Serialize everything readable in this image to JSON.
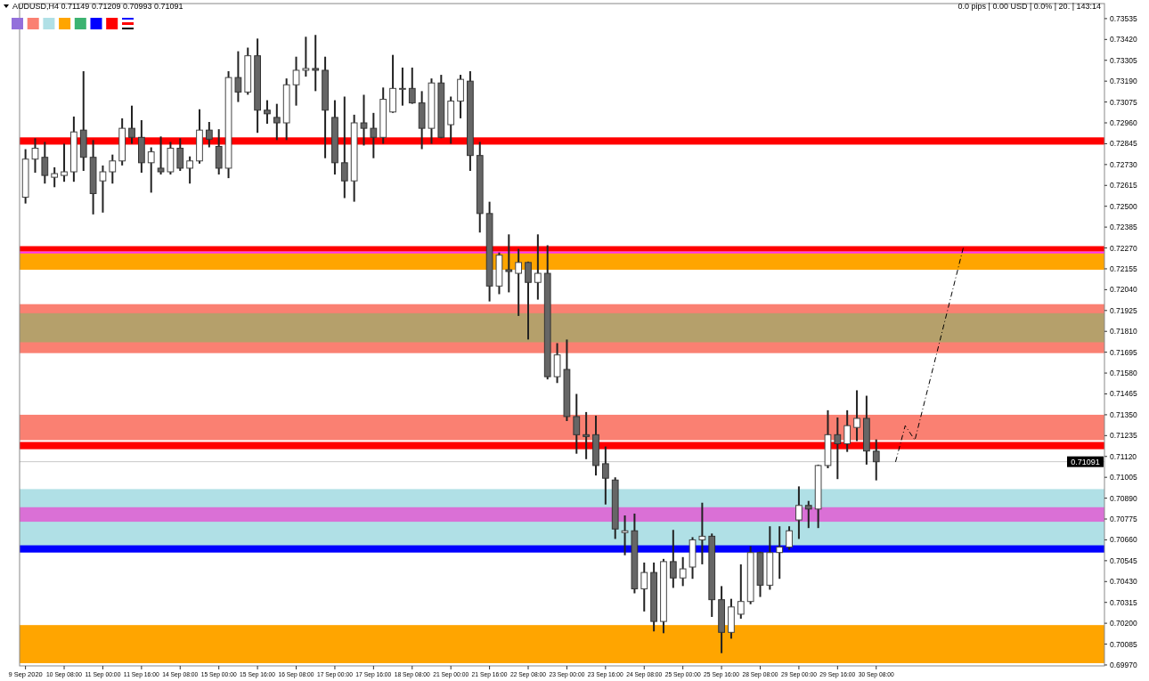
{
  "chart_data": {
    "type": "candlestick",
    "title": "AUDUSD,H4  0.71149 0.71209 0.70993 0.71091",
    "annotations": [
      "0.0 pips | 0.00 USD | 0.0% | 20. | 143:14"
    ],
    "categories": [
      "9 Sep 2020",
      null,
      null,
      null,
      "10 Sep 08:00",
      null,
      null,
      null,
      "11 Sep 00:00",
      null,
      null,
      null,
      "11 Sep 16:00",
      null,
      null,
      null,
      "14 Sep 08:00",
      null,
      null,
      null,
      "15 Sep 00:00",
      null,
      null,
      null,
      "15 Sep 16:00",
      null,
      null,
      null,
      "16 Sep 08:00",
      null,
      null,
      null,
      "17 Sep 00:00",
      null,
      null,
      null,
      "17 Sep 16:00",
      null,
      null,
      null,
      "18 Sep 08:00",
      null,
      null,
      null,
      "21 Sep 00:00",
      null,
      null,
      null,
      "21 Sep 16:00",
      null,
      null,
      null,
      "22 Sep 08:00",
      null,
      null,
      null,
      "23 Sep 00:00",
      null,
      null,
      null,
      "23 Sep 16:00",
      null,
      null,
      null,
      "24 Sep 08:00",
      null,
      null,
      null,
      "25 Sep 00:00",
      null,
      null,
      null,
      "25 Sep 16:00",
      null,
      null,
      null,
      "28 Sep 08:00",
      null,
      null,
      null,
      "29 Sep 00:00",
      null,
      null,
      null,
      "29 Sep 16:00",
      null,
      null,
      null,
      "30 Sep 08:00",
      null,
      null,
      null,
      null,
      null,
      null,
      null,
      null,
      null,
      null,
      null,
      null,
      null,
      null,
      null,
      null,
      null,
      null,
      null,
      null,
      null,
      null,
      null
    ],
    "ohlc": [
      [
        0.7255,
        0.7281,
        0.7252,
        0.7276
      ],
      [
        0.7276,
        0.7287,
        0.7269,
        0.7282
      ],
      [
        0.7277,
        0.7285,
        0.7263,
        0.7267
      ],
      [
        0.7266,
        0.7271,
        0.7261,
        0.7268
      ],
      [
        0.7267,
        0.7284,
        0.7264,
        0.7269
      ],
      [
        0.7269,
        0.7299,
        0.7264,
        0.7291
      ],
      [
        0.7292,
        0.7324,
        0.727,
        0.7277
      ],
      [
        0.7277,
        0.7286,
        0.7246,
        0.7257
      ],
      [
        0.7264,
        0.7272,
        0.7247,
        0.7269
      ],
      [
        0.7269,
        0.7278,
        0.7263,
        0.7275
      ],
      [
        0.7275,
        0.7298,
        0.7273,
        0.7293
      ],
      [
        0.7293,
        0.7305,
        0.7285,
        0.7288
      ],
      [
        0.7288,
        0.7297,
        0.7269,
        0.7274
      ],
      [
        0.7274,
        0.7282,
        0.7258,
        0.728
      ],
      [
        0.7271,
        0.7288,
        0.7268,
        0.7269
      ],
      [
        0.7269,
        0.7285,
        0.7268,
        0.7282
      ],
      [
        0.7282,
        0.7287,
        0.727,
        0.7271
      ],
      [
        0.7271,
        0.7277,
        0.7263,
        0.7275
      ],
      [
        0.7275,
        0.7303,
        0.7274,
        0.7292
      ],
      [
        0.7292,
        0.7296,
        0.7283,
        0.7287
      ],
      [
        0.7283,
        0.7292,
        0.7268,
        0.7271
      ],
      [
        0.7271,
        0.7324,
        0.7266,
        0.7321
      ],
      [
        0.7321,
        0.7335,
        0.7308,
        0.7313
      ],
      [
        0.7313,
        0.7337,
        0.7312,
        0.7333
      ],
      [
        0.7333,
        0.7342,
        0.7291,
        0.7303
      ],
      [
        0.7303,
        0.7308,
        0.7296,
        0.7301
      ],
      [
        0.7299,
        0.7306,
        0.7287,
        0.7296
      ],
      [
        0.7296,
        0.732,
        0.7287,
        0.7317
      ],
      [
        0.7317,
        0.7332,
        0.7306,
        0.7325
      ],
      [
        0.7325,
        0.7343,
        0.7322,
        0.7326
      ],
      [
        0.7326,
        0.7344,
        0.7314,
        0.7325
      ],
      [
        0.7325,
        0.7332,
        0.7277,
        0.7303
      ],
      [
        0.7299,
        0.7308,
        0.7268,
        0.7274
      ],
      [
        0.7274,
        0.731,
        0.7255,
        0.7264
      ],
      [
        0.7264,
        0.73,
        0.7253,
        0.7296
      ],
      [
        0.7296,
        0.7311,
        0.7284,
        0.7293
      ],
      [
        0.7293,
        0.7301,
        0.7277,
        0.7288
      ],
      [
        0.7288,
        0.7315,
        0.7285,
        0.7309
      ],
      [
        0.7302,
        0.7333,
        0.7302,
        0.7315
      ],
      [
        0.7315,
        0.7326,
        0.7306,
        0.7315
      ],
      [
        0.7315,
        0.7326,
        0.7307,
        0.7307
      ],
      [
        0.7307,
        0.7313,
        0.7282,
        0.7293
      ],
      [
        0.7293,
        0.732,
        0.7285,
        0.7318
      ],
      [
        0.7318,
        0.7322,
        0.7288,
        0.7288
      ],
      [
        0.7295,
        0.731,
        0.7285,
        0.7308
      ],
      [
        0.7308,
        0.7322,
        0.7299,
        0.732
      ],
      [
        0.7319,
        0.7324,
        0.727,
        0.7278
      ],
      [
        0.7278,
        0.7285,
        0.7236,
        0.7246
      ],
      [
        0.7246,
        0.7252,
        0.7198,
        0.7206
      ],
      [
        0.7206,
        0.7224,
        0.7202,
        0.7223
      ],
      [
        0.7215,
        0.7234,
        0.7203,
        0.7214
      ],
      [
        0.7213,
        0.7226,
        0.719,
        0.7219
      ],
      [
        0.7219,
        0.7219,
        0.7177,
        0.7208
      ],
      [
        0.7208,
        0.7234,
        0.7199,
        0.7213
      ],
      [
        0.7213,
        0.7228,
        0.7155,
        0.7156
      ],
      [
        0.7156,
        0.7174,
        0.7153,
        0.7168
      ],
      [
        0.716,
        0.7176,
        0.7132,
        0.7134
      ],
      [
        0.7134,
        0.7146,
        0.7114,
        0.7124
      ],
      [
        0.7124,
        0.7136,
        0.7111,
        0.7123
      ],
      [
        0.7124,
        0.7134,
        0.7102,
        0.7107
      ],
      [
        0.7108,
        0.7117,
        0.7086,
        0.71
      ],
      [
        0.7099,
        0.71,
        0.7067,
        0.7072
      ],
      [
        0.707,
        0.7079,
        0.7058,
        0.7071
      ],
      [
        0.7071,
        0.708,
        0.7037,
        0.7039
      ],
      [
        0.7039,
        0.7053,
        0.7027,
        0.7048
      ],
      [
        0.7048,
        0.7053,
        0.7016,
        0.7021
      ],
      [
        0.7021,
        0.7055,
        0.7015,
        0.7054
      ],
      [
        0.7054,
        0.7071,
        0.704,
        0.7045
      ],
      [
        0.7045,
        0.7056,
        0.7041,
        0.705
      ],
      [
        0.7051,
        0.7067,
        0.7045,
        0.7066
      ],
      [
        0.7066,
        0.7086,
        0.7053,
        0.7068
      ],
      [
        0.7068,
        0.7069,
        0.7024,
        0.7033
      ],
      [
        0.7033,
        0.704,
        0.7004,
        0.7015
      ],
      [
        0.7015,
        0.7033,
        0.7012,
        0.7029
      ],
      [
        0.7025,
        0.7052,
        0.7023,
        0.7032
      ],
      [
        0.7032,
        0.7062,
        0.7031,
        0.7059
      ],
      [
        0.7059,
        0.7059,
        0.7035,
        0.7041
      ],
      [
        0.7041,
        0.7073,
        0.7039,
        0.7059
      ],
      [
        0.7059,
        0.7073,
        0.7045,
        0.7062
      ],
      [
        0.7062,
        0.7073,
        0.7061,
        0.7071
      ],
      [
        0.7077,
        0.7095,
        0.7067,
        0.7085
      ],
      [
        0.7085,
        0.7087,
        0.7073,
        0.7083
      ],
      [
        0.7083,
        0.7107,
        0.7073,
        0.7107
      ],
      [
        0.7107,
        0.7137,
        0.7106,
        0.7124
      ],
      [
        0.7124,
        0.7133,
        0.71,
        0.7119
      ],
      [
        0.7119,
        0.7137,
        0.7115,
        0.7129
      ],
      [
        0.7128,
        0.7148,
        0.7121,
        0.7133
      ],
      [
        0.7133,
        0.7145,
        0.7108,
        0.7115
      ],
      [
        0.71149,
        0.71209,
        0.70993,
        0.71091
      ],
      null,
      null,
      null,
      null,
      null,
      null,
      null,
      null,
      null,
      null,
      null,
      null,
      null,
      null,
      null,
      null,
      null,
      null,
      null,
      null,
      null,
      null,
      null
    ],
    "series": [
      {
        "type": "line",
        "color": "#000000",
        "line_style": "dashed",
        "values": [
          null,
          null,
          null,
          null,
          null,
          null,
          null,
          null,
          null,
          null,
          null,
          null,
          null,
          null,
          null,
          null,
          null,
          null,
          null,
          null,
          null,
          null,
          null,
          null,
          null,
          null,
          null,
          null,
          null,
          null,
          null,
          null,
          null,
          null,
          null,
          null,
          null,
          null,
          null,
          null,
          null,
          null,
          null,
          null,
          null,
          null,
          null,
          null,
          null,
          null,
          null,
          null,
          null,
          null,
          null,
          null,
          null,
          null,
          null,
          null,
          null,
          null,
          null,
          null,
          null,
          null,
          null,
          null,
          null,
          null,
          null,
          null,
          null,
          null,
          null,
          null,
          null,
          null,
          null,
          null,
          null,
          null,
          null,
          null,
          null,
          null,
          null,
          null,
          null,
          null,
          0.7109,
          0.7129,
          0.7121,
          null,
          null,
          null,
          null,
          0.7227,
          null,
          null,
          null,
          null,
          null,
          null,
          null,
          null,
          null,
          null,
          null,
          null,
          null,
          null
        ]
      }
    ],
    "bands": [
      {
        "axis": "y",
        "from": 0.7062,
        "to": 0.7094,
        "color": "#b0e0e6"
      },
      {
        "axis": "y",
        "from": 0.6998,
        "to": 0.7019,
        "color": "#ffa500"
      },
      {
        "axis": "y",
        "from": 0.7169,
        "to": 0.7196,
        "color": "#fa8072"
      },
      {
        "axis": "y",
        "from": 0.7175,
        "to": 0.7191,
        "color": "#b5a06b"
      },
      {
        "axis": "y",
        "from": 0.7215,
        "to": 0.7225,
        "color": "#ffa500"
      },
      {
        "axis": "y",
        "from": 0.7284,
        "to": 0.7288,
        "color": "#ff0000"
      },
      {
        "axis": "y",
        "from": 0.7225,
        "to": 0.7228,
        "color": "#ff0000"
      },
      {
        "axis": "y",
        "from": 0.7224,
        "to": 0.7225,
        "color": "#ff33ff"
      },
      {
        "axis": "y",
        "from": 0.7121,
        "to": 0.7135,
        "color": "#fa8072"
      },
      {
        "axis": "y",
        "from": 0.7076,
        "to": 0.7084,
        "color": "#da70d6"
      },
      {
        "axis": "y",
        "from": 0.7059,
        "to": 0.7063,
        "color": "#0000ff"
      },
      {
        "axis": "y",
        "from": 0.7116,
        "to": 0.712,
        "color": "#ff0000"
      }
    ],
    "ref_lines": [
      {
        "axis": "y",
        "value": 0.71091,
        "label": "0.71091",
        "color": "#c8c8c8"
      }
    ],
    "ylim": [
      0.69965,
      0.73618
    ],
    "yticks": [
      0.73535,
      {
        "value": 0.7342,
        "label": "0.73420"
      },
      0.73305,
      {
        "value": 0.7319,
        "label": "0.73190"
      },
      0.73075,
      {
        "value": 0.7296,
        "label": "0.72960"
      },
      0.72845,
      {
        "value": 0.7273,
        "label": "0.72730"
      },
      0.72615,
      {
        "value": 0.725,
        "label": "0.72500"
      },
      0.72385,
      {
        "value": 0.7227,
        "label": "0.72270"
      },
      0.72155,
      {
        "value": 0.7204,
        "label": "0.72040"
      },
      0.71925,
      {
        "value": 0.7181,
        "label": "0.71810"
      },
      0.71695,
      {
        "value": 0.7158,
        "label": "0.71580"
      },
      0.71465,
      {
        "value": 0.7135,
        "label": "0.71350"
      },
      0.71235,
      {
        "value": 0.7112,
        "label": "0.71120"
      },
      0.71005,
      {
        "value": 0.7089,
        "label": "0.70890"
      },
      0.70775,
      {
        "value": 0.7066,
        "label": "0.70660"
      },
      0.70545,
      {
        "value": 0.7043,
        "label": "0.70430"
      },
      0.70315,
      {
        "value": 0.702,
        "label": "0.70200"
      },
      0.70085,
      {
        "value": 0.6997,
        "label": "0.69970"
      }
    ]
  }
}
